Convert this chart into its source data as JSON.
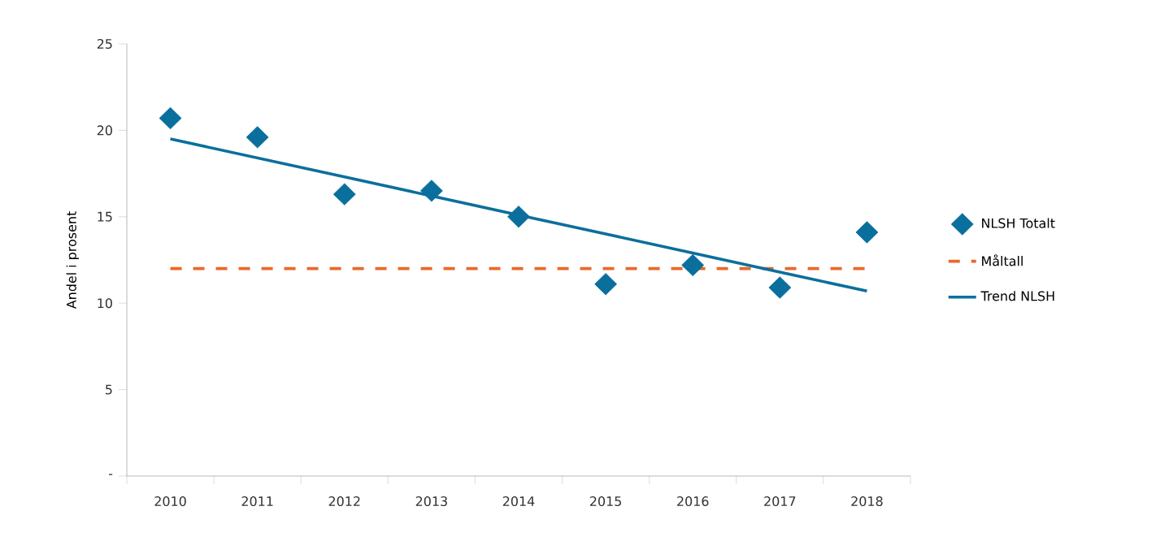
{
  "chart_data": {
    "type": "line",
    "ylabel": "Andel i prosent",
    "categories": [
      "2010",
      "2011",
      "2012",
      "2013",
      "2014",
      "2015",
      "2016",
      "2017",
      "2018"
    ],
    "series": [
      {
        "name": "NLSH Totalt",
        "type": "scatter",
        "marker": "diamond",
        "color": "#0a6f9c",
        "values": [
          20.7,
          19.6,
          16.3,
          16.5,
          15.0,
          11.1,
          12.2,
          10.9,
          14.1
        ]
      },
      {
        "name": "Måltall",
        "line_style": "dashed",
        "color": "#e8692a",
        "values": [
          12,
          12,
          12,
          12,
          12,
          12,
          12,
          12,
          12
        ]
      },
      {
        "name": "Trend NLSH",
        "line_style": "solid",
        "color": "#0a6f9c",
        "values": [
          19.5,
          18.4,
          17.3,
          16.2,
          15.1,
          14.0,
          12.9,
          11.8,
          10.7
        ]
      }
    ],
    "ylim": [
      0,
      25
    ],
    "yticks": [
      {
        "value": 0,
        "label": "-"
      },
      5,
      10,
      15,
      20,
      25
    ],
    "grid": false,
    "legend": "right"
  }
}
